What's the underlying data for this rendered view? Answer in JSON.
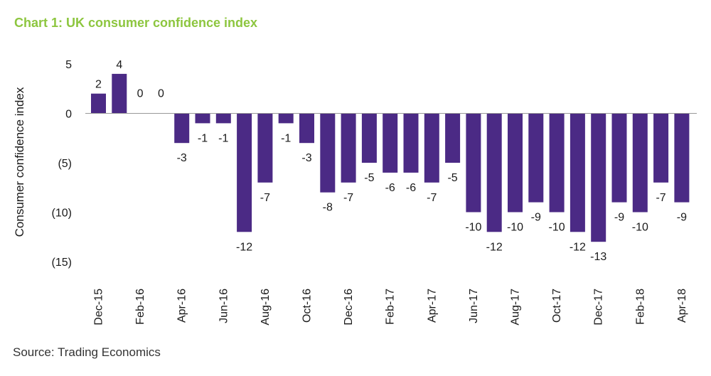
{
  "chart_data": {
    "type": "bar",
    "title": "Chart 1: UK consumer confidence index",
    "ylabel": "Consumer confidence index",
    "xlabel": "",
    "ylim": [
      -15,
      5
    ],
    "yticks": [
      5,
      0,
      -5,
      -10,
      -15
    ],
    "ytick_labels": [
      "5",
      "0",
      "(5)",
      "(10)",
      "(15)"
    ],
    "categories": [
      "Dec-15",
      "Jan-16",
      "Feb-16",
      "Mar-16",
      "Apr-16",
      "May-16",
      "Jun-16",
      "Jul-16",
      "Aug-16",
      "Sep-16",
      "Oct-16",
      "Nov-16",
      "Dec-16",
      "Jan-17",
      "Feb-17",
      "Mar-17",
      "Apr-17",
      "May-17",
      "Jun-17",
      "Jul-17",
      "Aug-17",
      "Sep-17",
      "Oct-17",
      "Nov-17",
      "Dec-17",
      "Jan-18",
      "Feb-18",
      "Mar-18",
      "Apr-18"
    ],
    "x_tick_labels": [
      "Dec-15",
      "",
      "Feb-16",
      "",
      "Apr-16",
      "",
      "Jun-16",
      "",
      "Aug-16",
      "",
      "Oct-16",
      "",
      "Dec-16",
      "",
      "Feb-17",
      "",
      "Apr-17",
      "",
      "Jun-17",
      "",
      "Aug-17",
      "",
      "Oct-17",
      "",
      "Dec-17",
      "",
      "Feb-18",
      "",
      "Apr-18"
    ],
    "values": [
      2,
      4,
      0,
      0,
      -3,
      -1,
      -1,
      -12,
      -7,
      -1,
      -3,
      -8,
      -7,
      -5,
      -6,
      -6,
      -7,
      -5,
      -10,
      -12,
      -10,
      -9,
      -10,
      -12,
      -13,
      -9,
      -10,
      -7,
      -9
    ],
    "value_labels": [
      "2",
      "4",
      "0",
      "0",
      "-3",
      "-1",
      "-1",
      "-12",
      "-7",
      "-1",
      "-3",
      "-8",
      "-7",
      "-5",
      "-6",
      "-6",
      "-7",
      "-5",
      "-10",
      "-12",
      "-10",
      "-9",
      "-10",
      "-12",
      "-13",
      "-9",
      "-10",
      "-7",
      "-9"
    ],
    "grid": false,
    "legend": "none",
    "bar_color": "#4b2a85",
    "title_color": "#8dc63f",
    "source": "Source: Trading Economics"
  }
}
